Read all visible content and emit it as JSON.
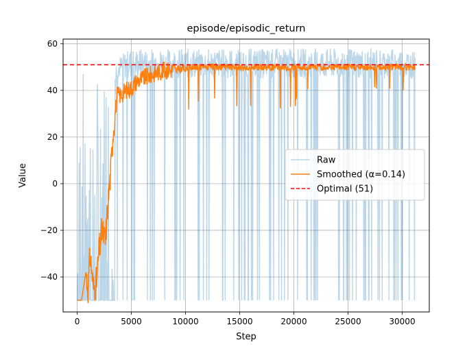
{
  "chart_data": {
    "type": "line",
    "title": "episode/episodic_return",
    "xlabel": "Step",
    "ylabel": "Value",
    "xlim": [
      -1300,
      32500
    ],
    "ylim": [
      -55,
      62
    ],
    "xticks": [
      0,
      5000,
      10000,
      15000,
      20000,
      25000,
      30000
    ],
    "xtick_labels": [
      "0",
      "5000",
      "10000",
      "15000",
      "20000",
      "25000",
      "30000"
    ],
    "yticks": [
      -40,
      -20,
      0,
      20,
      40,
      60
    ],
    "ytick_labels": [
      "−40",
      "−20",
      "0",
      "20",
      "40",
      "60"
    ],
    "grid": true,
    "legend_position": "center-right",
    "series": [
      {
        "name": "Raw",
        "color": "#1f77b4",
        "alpha": 0.3,
        "description_points": {
          "x": [
            0,
            300,
            600,
            900,
            1200,
            1500,
            1800,
            2100,
            2400,
            2700,
            3000,
            3300,
            3600,
            4000,
            4500,
            5000,
            6000,
            7000,
            8000,
            9000,
            10000,
            12000,
            14000,
            16000,
            18000,
            20000,
            22000,
            24000,
            26000,
            28000,
            30000,
            31200
          ],
          "y": [
            -50,
            -50,
            45,
            -50,
            30,
            -50,
            48,
            -50,
            50,
            -50,
            50,
            -50,
            52,
            55,
            57,
            58,
            58,
            58,
            58,
            58,
            58,
            58,
            58,
            58,
            58,
            58,
            58,
            58,
            58,
            58,
            58,
            57
          ]
        }
      },
      {
        "name": "Smoothed (α=0.14)",
        "color": "#ff7f0e",
        "points": {
          "x": [
            0,
            400,
            800,
            1000,
            1200,
            1500,
            1800,
            2000,
            2300,
            2600,
            2900,
            3100,
            3300,
            3500,
            3700,
            4000,
            4500,
            5000,
            5500,
            6000,
            6500,
            7000,
            7500,
            8000,
            9000,
            10000,
            11000,
            12000,
            14000,
            16000,
            18000,
            20000,
            22000,
            24000,
            26000,
            28000,
            30000,
            31200
          ],
          "y": [
            -50,
            -50,
            -38,
            -45,
            -30,
            -45,
            -42,
            -30,
            -20,
            -25,
            -5,
            5,
            22,
            30,
            38,
            38,
            40,
            41,
            44,
            45,
            46,
            47,
            48,
            48.5,
            49,
            49.5,
            50,
            50,
            50,
            50,
            50,
            50,
            50,
            50,
            50,
            50,
            50,
            50
          ]
        }
      },
      {
        "name": "Optimal (51)",
        "color": "#ff0000",
        "value": 51
      }
    ]
  }
}
